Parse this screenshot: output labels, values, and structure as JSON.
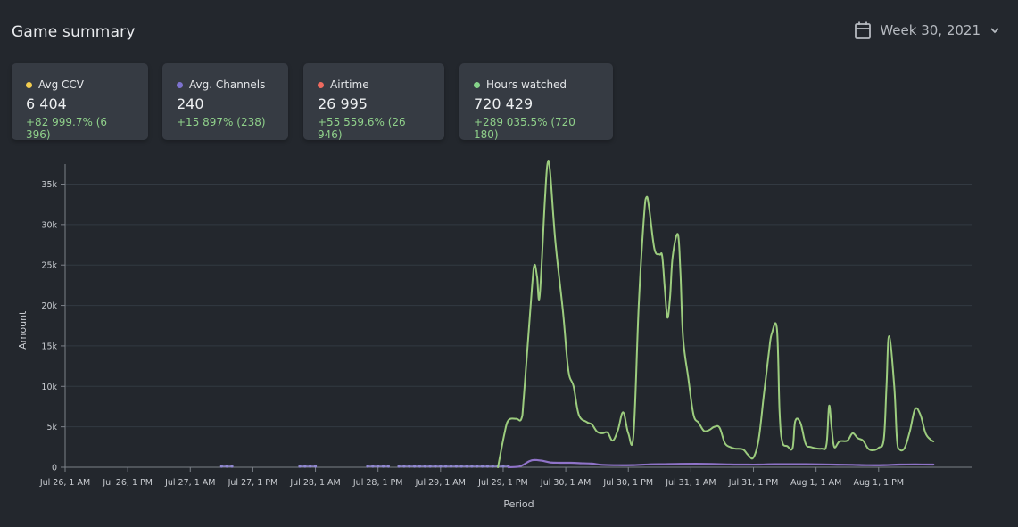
{
  "header": {
    "title": "Game summary",
    "week_label": "Week 30, 2021"
  },
  "icons": {
    "calendar": "calendar-icon",
    "chevron": "chevron-down-icon"
  },
  "cards": [
    {
      "label": "Avg CCV",
      "value": "6 404",
      "delta": "+82 999.7% (6 396)",
      "color": "#f2cc4f"
    },
    {
      "label": "Avg. Channels",
      "value": "240",
      "delta": "+15 897% (238)",
      "color": "#7d72cf"
    },
    {
      "label": "Airtime",
      "value": "26 995",
      "delta": "+55 559.6% (26 946)",
      "color": "#ee6a5f"
    },
    {
      "label": "Hours watched",
      "value": "720 429",
      "delta": "+289 035.5% (720 180)",
      "color": "#86d38a"
    }
  ],
  "chart_data": {
    "type": "line",
    "xlabel": "Period",
    "ylabel": "Amount",
    "ylim": [
      0,
      35000
    ],
    "yticks": [
      0,
      5000,
      10000,
      15000,
      20000,
      25000,
      30000,
      35000
    ],
    "ytick_labels": [
      "0",
      "5k",
      "10k",
      "15k",
      "20k",
      "25k",
      "30k",
      "35k"
    ],
    "x_range_hours_from_jul26_1am": [
      0,
      174
    ],
    "xticks": [
      0,
      12,
      24,
      36,
      48,
      60,
      72,
      84,
      96,
      108,
      120,
      132,
      144,
      156
    ],
    "xtick_labels": [
      "Jul 26, 1 AM",
      "Jul 26, 1 PM",
      "Jul 27, 1 AM",
      "Jul 27, 1 PM",
      "Jul 28, 1 AM",
      "Jul 28, 1 PM",
      "Jul 29, 1 AM",
      "Jul 29, 1 PM",
      "Jul 30, 1 AM",
      "Jul 30, 1 PM",
      "Jul 31, 1 AM",
      "Jul 31, 1 PM",
      "Aug 1, 1 AM",
      "Aug 1, 1 PM"
    ],
    "grid": true,
    "series": [
      {
        "color": "#9ccc7e",
        "points": [
          [
            83.0,
            0
          ],
          [
            84.2,
            4000
          ],
          [
            85.0,
            5800
          ],
          [
            86.5,
            6000
          ],
          [
            87.5,
            6000
          ],
          [
            88.0,
            9000
          ],
          [
            89.5,
            22000
          ],
          [
            90.0,
            25000
          ],
          [
            90.5,
            23500
          ],
          [
            91.0,
            21200
          ],
          [
            92.0,
            33000
          ],
          [
            92.5,
            37500
          ],
          [
            93.0,
            36500
          ],
          [
            94.0,
            28000
          ],
          [
            95.5,
            19000
          ],
          [
            96.5,
            12000
          ],
          [
            97.5,
            10000
          ],
          [
            98.5,
            6500
          ],
          [
            100.0,
            5600
          ],
          [
            101.0,
            5300
          ],
          [
            102.0,
            4400
          ],
          [
            103.0,
            4200
          ],
          [
            104.0,
            4300
          ],
          [
            105.0,
            3300
          ],
          [
            106.0,
            4600
          ],
          [
            107.0,
            6800
          ],
          [
            108.0,
            4200
          ],
          [
            109.0,
            4100
          ],
          [
            110.0,
            20000
          ],
          [
            111.0,
            31000
          ],
          [
            111.5,
            33400
          ],
          [
            112.0,
            32000
          ],
          [
            113.0,
            27000
          ],
          [
            114.0,
            26300
          ],
          [
            114.5,
            26100
          ],
          [
            115.0,
            22000
          ],
          [
            115.5,
            18500
          ],
          [
            116.0,
            21000
          ],
          [
            116.5,
            26000
          ],
          [
            117.5,
            28800
          ],
          [
            118.0,
            24000
          ],
          [
            118.5,
            16000
          ],
          [
            119.5,
            11000
          ],
          [
            120.5,
            6500
          ],
          [
            121.5,
            5500
          ],
          [
            122.5,
            4500
          ],
          [
            123.5,
            4600
          ],
          [
            124.5,
            5000
          ],
          [
            125.5,
            4900
          ],
          [
            126.5,
            3000
          ],
          [
            127.5,
            2500
          ],
          [
            128.5,
            2300
          ],
          [
            130.0,
            2200
          ],
          [
            131.0,
            1500
          ],
          [
            132.0,
            1200
          ],
          [
            133.0,
            3500
          ],
          [
            134.0,
            9000
          ],
          [
            135.0,
            14500
          ],
          [
            135.5,
            16500
          ],
          [
            136.5,
            17100
          ],
          [
            137.0,
            7000
          ],
          [
            137.5,
            3200
          ],
          [
            138.5,
            2600
          ],
          [
            139.5,
            2400
          ],
          [
            140.0,
            5700
          ],
          [
            141.0,
            5500
          ],
          [
            142.0,
            2900
          ],
          [
            143.0,
            2500
          ],
          [
            145.0,
            2300
          ],
          [
            146.0,
            2800
          ],
          [
            146.5,
            7600
          ],
          [
            147.0,
            4800
          ],
          [
            147.5,
            2500
          ],
          [
            148.5,
            3200
          ],
          [
            150.0,
            3300
          ],
          [
            151.0,
            4200
          ],
          [
            152.0,
            3600
          ],
          [
            153.0,
            3300
          ],
          [
            154.0,
            2300
          ],
          [
            155.0,
            2100
          ],
          [
            156.0,
            2400
          ],
          [
            157.0,
            3500
          ],
          [
            157.5,
            10000
          ],
          [
            158.0,
            16200
          ],
          [
            159.0,
            10000
          ],
          [
            159.5,
            3500
          ],
          [
            160.0,
            2200
          ],
          [
            161.0,
            2400
          ],
          [
            162.0,
            4500
          ],
          [
            163.0,
            7200
          ],
          [
            164.0,
            6500
          ],
          [
            165.0,
            4200
          ],
          [
            166.0,
            3400
          ],
          [
            166.5,
            3200
          ]
        ]
      },
      {
        "color": "#8f73c8",
        "points": [
          [
            85,
            0
          ],
          [
            87,
            80
          ],
          [
            88,
            350
          ],
          [
            89.0,
            750
          ],
          [
            90,
            900
          ],
          [
            91.5,
            800
          ],
          [
            93,
            600
          ],
          [
            95,
            550
          ],
          [
            97,
            550
          ],
          [
            99,
            500
          ],
          [
            101,
            450
          ],
          [
            103,
            300
          ],
          [
            106,
            250
          ],
          [
            109,
            270
          ],
          [
            112,
            350
          ],
          [
            115,
            380
          ],
          [
            118,
            420
          ],
          [
            121,
            430
          ],
          [
            124,
            400
          ],
          [
            127,
            350
          ],
          [
            130,
            330
          ],
          [
            133,
            330
          ],
          [
            136,
            380
          ],
          [
            139,
            370
          ],
          [
            142,
            370
          ],
          [
            145,
            350
          ],
          [
            148,
            320
          ],
          [
            151,
            300
          ],
          [
            154,
            250
          ],
          [
            157,
            260
          ],
          [
            160,
            330
          ],
          [
            163,
            340
          ],
          [
            166.5,
            330
          ]
        ]
      }
    ],
    "dotted_segments": [
      [
        30,
        32
      ],
      [
        45,
        48
      ],
      [
        58,
        62
      ],
      [
        64,
        85
      ]
    ]
  }
}
